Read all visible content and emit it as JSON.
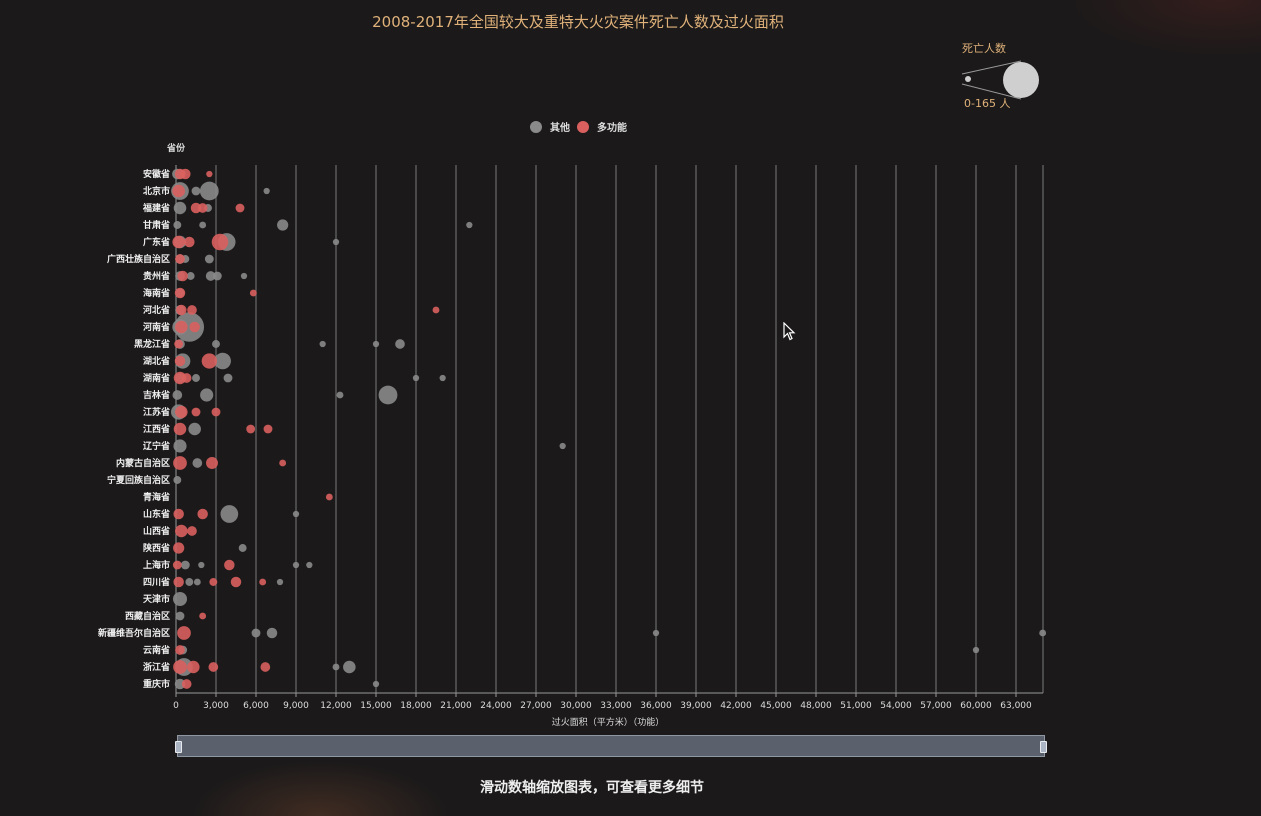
{
  "chart_title": "2008-2017年全国较大及重特大火灾案件死亡人数及过火面积",
  "size_legend": {
    "title": "死亡人数",
    "range_label": "0-165 人"
  },
  "legend": [
    {
      "label": "其他",
      "color": "#8a8a8a"
    },
    {
      "label": "多功能",
      "color": "#d9605e"
    }
  ],
  "hint": "滑动数轴缩放图表，可查看更多细节",
  "chart_data": {
    "type": "scatter",
    "title": "2008-2017年全国较大及重特大火灾案件死亡人数及过火面积",
    "ylabel": "省份",
    "xlabel": "过火面积（平方米）（功能）",
    "xlim": [
      0,
      65000
    ],
    "xticks": [
      0,
      3000,
      6000,
      9000,
      12000,
      15000,
      18000,
      21000,
      24000,
      27000,
      30000,
      33000,
      36000,
      39000,
      42000,
      45000,
      48000,
      51000,
      54000,
      57000,
      60000,
      63000
    ],
    "categories": [
      "安徽省",
      "北京市",
      "福建省",
      "甘肃省",
      "广东省",
      "广西壮族自治区",
      "贵州省",
      "海南省",
      "河北省",
      "河南省",
      "黑龙江省",
      "湖北省",
      "湖南省",
      "吉林省",
      "江苏省",
      "江西省",
      "辽宁省",
      "内蒙古自治区",
      "宁夏回族自治区",
      "青海省",
      "山东省",
      "山西省",
      "陕西省",
      "上海市",
      "四川省",
      "天津市",
      "西藏自治区",
      "新疆维吾尔自治区",
      "云南省",
      "浙江省",
      "重庆市"
    ],
    "size_range": [
      0,
      165
    ],
    "series": [
      {
        "name": "其他",
        "color": "#8a8a8a",
        "points": [
          [
            "安徽省",
            100,
            14
          ],
          [
            "安徽省",
            400,
            10
          ],
          [
            "北京市",
            300,
            40
          ],
          [
            "北京市",
            2500,
            45
          ],
          [
            "北京市",
            1500,
            10
          ],
          [
            "北京市",
            6800,
            5
          ],
          [
            "福建省",
            300,
            20
          ],
          [
            "福建省",
            2400,
            8
          ],
          [
            "甘肃省",
            100,
            8
          ],
          [
            "甘肃省",
            2000,
            6
          ],
          [
            "甘肃省",
            8000,
            16
          ],
          [
            "甘肃省",
            22000,
            5
          ],
          [
            "广东省",
            300,
            20
          ],
          [
            "广东省",
            3800,
            40
          ],
          [
            "广东省",
            12000,
            5
          ],
          [
            "广西壮族自治区",
            300,
            12
          ],
          [
            "广西壮族自治区",
            700,
            8
          ],
          [
            "广西壮族自治区",
            2500,
            10
          ],
          [
            "贵州省",
            300,
            12
          ],
          [
            "贵州省",
            1100,
            8
          ],
          [
            "贵州省",
            2600,
            12
          ],
          [
            "贵州省",
            3100,
            10
          ],
          [
            "贵州省",
            5100,
            5
          ],
          [
            "海南省",
            300,
            10
          ],
          [
            "河北省",
            300,
            12
          ],
          [
            "河南省",
            1000,
            110
          ],
          [
            "河南省",
            300,
            30
          ],
          [
            "黑龙江省",
            300,
            12
          ],
          [
            "黑龙江省",
            3000,
            8
          ],
          [
            "黑龙江省",
            11000,
            5
          ],
          [
            "黑龙江省",
            15000,
            5
          ],
          [
            "黑龙江省",
            16800,
            12
          ],
          [
            "湖北省",
            500,
            30
          ],
          [
            "湖北省",
            3500,
            35
          ],
          [
            "湖南省",
            300,
            12
          ],
          [
            "湖南省",
            1500,
            8
          ],
          [
            "湖南省",
            3900,
            10
          ],
          [
            "湖南省",
            18000,
            5
          ],
          [
            "湖南省",
            20000,
            5
          ],
          [
            "吉林省",
            100,
            12
          ],
          [
            "吉林省",
            2300,
            22
          ],
          [
            "吉林省",
            12300,
            6
          ],
          [
            "吉林省",
            15900,
            45
          ],
          [
            "江苏省",
            200,
            30
          ],
          [
            "江西省",
            1400,
            20
          ],
          [
            "辽宁省",
            300,
            22
          ],
          [
            "辽宁省",
            29000,
            5
          ],
          [
            "内蒙古自治区",
            1600,
            12
          ],
          [
            "宁夏回族自治区",
            100,
            8
          ],
          [
            "山东省",
            4000,
            40
          ],
          [
            "山东省",
            9000,
            5
          ],
          [
            "陕西省",
            5000,
            8
          ],
          [
            "上海市",
            700,
            10
          ],
          [
            "上海市",
            1900,
            5
          ],
          [
            "上海市",
            9000,
            5
          ],
          [
            "上海市",
            10000,
            5
          ],
          [
            "四川省",
            1000,
            8
          ],
          [
            "四川省",
            1600,
            6
          ],
          [
            "四川省",
            7800,
            5
          ],
          [
            "天津市",
            300,
            25
          ],
          [
            "西藏自治区",
            300,
            10
          ],
          [
            "新疆维吾尔自治区",
            6000,
            10
          ],
          [
            "新疆维吾尔自治区",
            7200,
            14
          ],
          [
            "新疆维吾尔自治区",
            36000,
            5
          ],
          [
            "新疆维吾尔自治区",
            65000,
            6
          ],
          [
            "云南省",
            500,
            10
          ],
          [
            "云南省",
            60000,
            5
          ],
          [
            "浙江省",
            600,
            40
          ],
          [
            "浙江省",
            12000,
            6
          ],
          [
            "浙江省",
            13000,
            20
          ],
          [
            "重庆市",
            300,
            14
          ],
          [
            "重庆市",
            15000,
            5
          ]
        ]
      },
      {
        "name": "多功能",
        "color": "#d9605e",
        "points": [
          [
            "安徽省",
            300,
            14
          ],
          [
            "安徽省",
            700,
            14
          ],
          [
            "安徽省",
            2500,
            5
          ],
          [
            "北京市",
            200,
            20
          ],
          [
            "福建省",
            1500,
            14
          ],
          [
            "福建省",
            2000,
            12
          ],
          [
            "福建省",
            4800,
            10
          ],
          [
            "广东省",
            200,
            20
          ],
          [
            "广东省",
            1000,
            14
          ],
          [
            "广东省",
            3300,
            35
          ],
          [
            "广西壮族自治区",
            300,
            12
          ],
          [
            "贵州省",
            500,
            14
          ],
          [
            "海南省",
            300,
            14
          ],
          [
            "海南省",
            5800,
            6
          ],
          [
            "河北省",
            400,
            14
          ],
          [
            "河北省",
            1200,
            12
          ],
          [
            "河北省",
            19500,
            6
          ],
          [
            "河南省",
            400,
            20
          ],
          [
            "河南省",
            1400,
            14
          ],
          [
            "黑龙江省",
            200,
            10
          ],
          [
            "湖北省",
            300,
            14
          ],
          [
            "湖北省",
            2500,
            30
          ],
          [
            "湖南省",
            300,
            20
          ],
          [
            "湖南省",
            800,
            12
          ],
          [
            "江苏省",
            400,
            20
          ],
          [
            "江苏省",
            1500,
            10
          ],
          [
            "江苏省",
            3000,
            10
          ],
          [
            "江西省",
            300,
            20
          ],
          [
            "江西省",
            5600,
            10
          ],
          [
            "江西省",
            6900,
            10
          ],
          [
            "内蒙古自治区",
            300,
            24
          ],
          [
            "内蒙古自治区",
            2700,
            18
          ],
          [
            "内蒙古自治区",
            8000,
            6
          ],
          [
            "青海省",
            11500,
            6
          ],
          [
            "山东省",
            200,
            14
          ],
          [
            "山东省",
            2000,
            14
          ],
          [
            "山西省",
            400,
            20
          ],
          [
            "山西省",
            1200,
            12
          ],
          [
            "陕西省",
            200,
            16
          ],
          [
            "上海市",
            100,
            10
          ],
          [
            "上海市",
            4000,
            14
          ],
          [
            "四川省",
            200,
            14
          ],
          [
            "四川省",
            2800,
            8
          ],
          [
            "四川省",
            4500,
            14
          ],
          [
            "四川省",
            6500,
            6
          ],
          [
            "西藏自治区",
            2000,
            6
          ],
          [
            "新疆维吾尔自治区",
            600,
            24
          ],
          [
            "云南省",
            300,
            12
          ],
          [
            "浙江省",
            300,
            24
          ],
          [
            "浙江省",
            1300,
            20
          ],
          [
            "浙江省",
            2800,
            12
          ],
          [
            "浙江省",
            6700,
            12
          ],
          [
            "重庆市",
            800,
            12
          ]
        ]
      }
    ]
  }
}
